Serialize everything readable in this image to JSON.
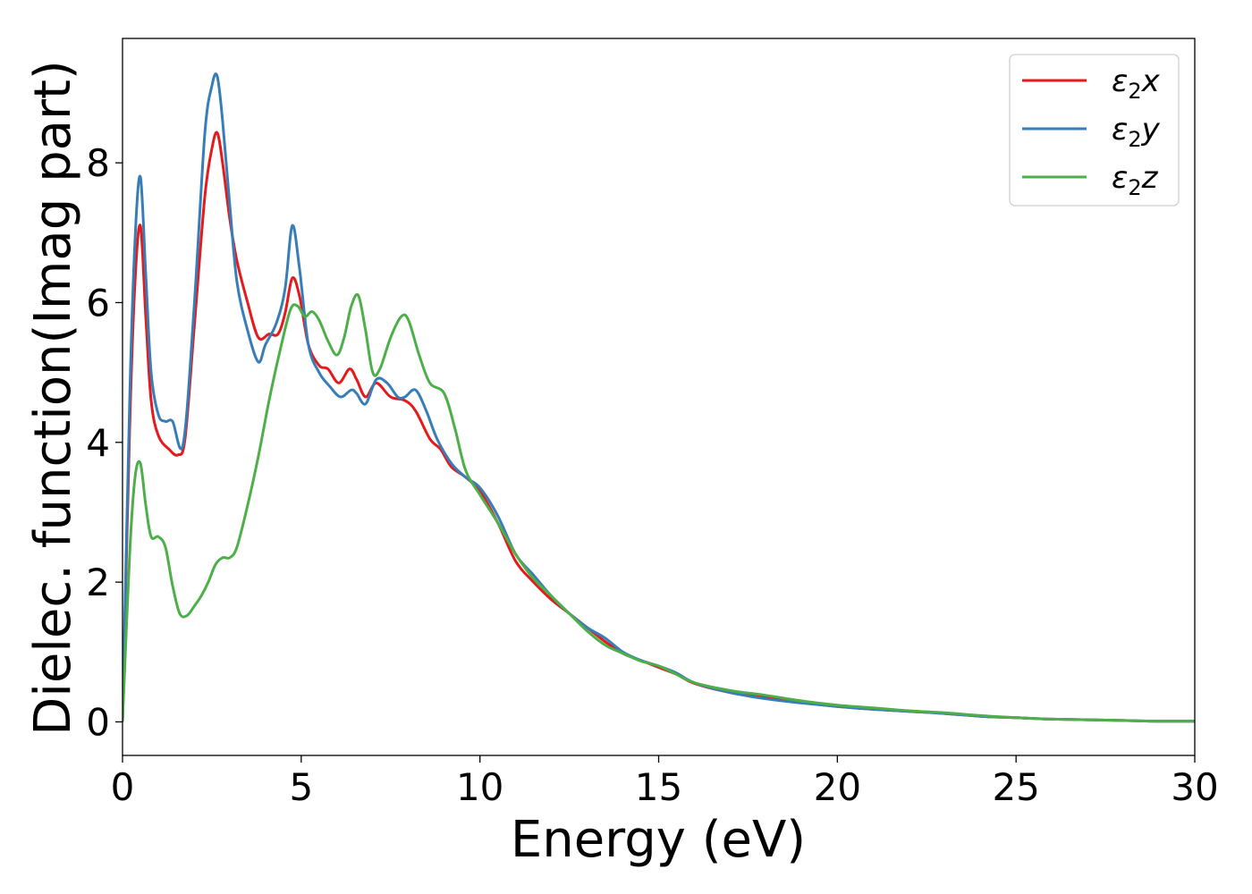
{
  "chart_data": {
    "type": "line",
    "xlabel": "Energy (eV)",
    "ylabel": "Dielec. function(Imag part)",
    "xlim": [
      0,
      30
    ],
    "ylim": [
      -0.48,
      9.78
    ],
    "xticks": [
      0,
      5,
      10,
      15,
      20,
      25,
      30
    ],
    "yticks": [
      0,
      2,
      4,
      6,
      8
    ],
    "grid": false,
    "legend_position": "top-right",
    "series": [
      {
        "name": "ε₂x",
        "legend_base": "ε",
        "legend_sub": "2",
        "legend_suffix": "x",
        "color": "#e41a1c",
        "x": [
          0,
          0.2,
          0.35,
          0.5,
          0.65,
          0.8,
          1.0,
          1.3,
          1.55,
          1.75,
          2.0,
          2.3,
          2.5,
          2.65,
          2.8,
          3.0,
          3.2,
          3.5,
          3.8,
          4.1,
          4.35,
          4.55,
          4.75,
          4.95,
          5.2,
          5.5,
          5.75,
          6.05,
          6.35,
          6.55,
          6.8,
          7.1,
          7.5,
          7.9,
          8.2,
          8.6,
          8.9,
          9.2,
          9.6,
          10.0,
          10.5,
          11.0,
          11.5,
          12.0,
          12.5,
          13.0,
          13.5,
          14.0,
          14.5,
          15.0,
          15.5,
          16.0,
          17.0,
          18.0,
          19.0,
          20.0,
          21.0,
          22.0,
          23.0,
          24.0,
          25.0,
          26.0,
          27.0,
          28.0,
          29.0,
          30.0
        ],
        "y": [
          0,
          4.2,
          6.3,
          7.1,
          5.8,
          4.6,
          4.1,
          3.9,
          3.82,
          4.05,
          5.6,
          7.5,
          8.2,
          8.43,
          8.0,
          7.2,
          6.6,
          6.0,
          5.5,
          5.55,
          5.55,
          5.85,
          6.35,
          6.1,
          5.4,
          5.1,
          5.05,
          4.85,
          5.05,
          4.9,
          4.65,
          4.85,
          4.65,
          4.6,
          4.45,
          4.05,
          3.9,
          3.65,
          3.5,
          3.3,
          2.85,
          2.3,
          2.0,
          1.75,
          1.55,
          1.35,
          1.15,
          0.98,
          0.88,
          0.78,
          0.68,
          0.55,
          0.42,
          0.35,
          0.28,
          0.22,
          0.18,
          0.15,
          0.12,
          0.08,
          0.06,
          0.04,
          0.03,
          0.02,
          0.01,
          0.01
        ]
      },
      {
        "name": "ε₂y",
        "legend_base": "ε",
        "legend_sub": "2",
        "legend_suffix": "y",
        "color": "#377eb8",
        "x": [
          0,
          0.2,
          0.35,
          0.5,
          0.65,
          0.8,
          1.0,
          1.2,
          1.4,
          1.7,
          2.0,
          2.3,
          2.5,
          2.65,
          2.8,
          3.0,
          3.2,
          3.5,
          3.8,
          4.0,
          4.3,
          4.55,
          4.75,
          4.95,
          5.2,
          5.5,
          5.8,
          6.1,
          6.4,
          6.55,
          6.8,
          7.1,
          7.4,
          7.7,
          7.9,
          8.2,
          8.5,
          8.8,
          9.2,
          9.6,
          10.0,
          10.5,
          11.0,
          11.5,
          12.0,
          12.5,
          13.0,
          13.5,
          14.0,
          14.5,
          15.0,
          15.5,
          16.0,
          17.0,
          18.0,
          19.0,
          20.0,
          21.0,
          22.0,
          23.0,
          24.0,
          25.0,
          26.0,
          27.0,
          28.0,
          29.0,
          30.0
        ],
        "y": [
          0,
          4.6,
          6.9,
          7.8,
          6.4,
          5.0,
          4.4,
          4.3,
          4.3,
          3.98,
          5.9,
          8.4,
          9.1,
          9.24,
          8.6,
          7.4,
          6.3,
          5.6,
          5.15,
          5.4,
          5.7,
          6.2,
          7.1,
          6.5,
          5.4,
          5.0,
          4.8,
          4.65,
          4.75,
          4.7,
          4.55,
          4.9,
          4.85,
          4.65,
          4.65,
          4.75,
          4.45,
          4.05,
          3.7,
          3.5,
          3.35,
          2.95,
          2.4,
          2.1,
          1.8,
          1.55,
          1.35,
          1.2,
          1.0,
          0.88,
          0.8,
          0.7,
          0.56,
          0.42,
          0.33,
          0.27,
          0.22,
          0.18,
          0.15,
          0.12,
          0.08,
          0.06,
          0.04,
          0.03,
          0.02,
          0.01,
          0.01
        ]
      },
      {
        "name": "ε₂z",
        "legend_base": "ε",
        "legend_sub": "2",
        "legend_suffix": "z",
        "color": "#4daf4a",
        "x": [
          0,
          0.2,
          0.35,
          0.5,
          0.65,
          0.8,
          1.0,
          1.2,
          1.4,
          1.6,
          1.8,
          2.0,
          2.2,
          2.4,
          2.6,
          2.8,
          3.0,
          3.2,
          3.5,
          3.8,
          4.1,
          4.4,
          4.7,
          4.9,
          5.1,
          5.3,
          5.5,
          5.75,
          6.0,
          6.2,
          6.4,
          6.6,
          6.8,
          7.0,
          7.2,
          7.5,
          7.8,
          8.0,
          8.3,
          8.6,
          9.0,
          9.3,
          9.6,
          10.0,
          10.5,
          11.0,
          11.5,
          12.0,
          12.5,
          13.0,
          13.5,
          14.0,
          14.5,
          15.0,
          15.5,
          16.0,
          17.0,
          18.0,
          19.0,
          20.0,
          21.0,
          22.0,
          23.0,
          24.0,
          25.0,
          26.0,
          27.0,
          28.0,
          29.0,
          30.0
        ],
        "y": [
          0,
          2.4,
          3.5,
          3.7,
          3.1,
          2.65,
          2.65,
          2.5,
          1.95,
          1.55,
          1.52,
          1.65,
          1.8,
          2.0,
          2.25,
          2.35,
          2.35,
          2.5,
          3.1,
          3.8,
          4.6,
          5.3,
          5.9,
          5.95,
          5.8,
          5.87,
          5.75,
          5.45,
          5.25,
          5.5,
          5.95,
          6.1,
          5.6,
          5.0,
          5.05,
          5.5,
          5.8,
          5.75,
          5.25,
          4.85,
          4.7,
          4.2,
          3.6,
          3.25,
          2.85,
          2.4,
          2.05,
          1.8,
          1.55,
          1.3,
          1.1,
          0.98,
          0.87,
          0.8,
          0.68,
          0.56,
          0.45,
          0.38,
          0.3,
          0.24,
          0.2,
          0.16,
          0.13,
          0.09,
          0.06,
          0.04,
          0.03,
          0.02,
          0.01,
          0.01
        ]
      }
    ]
  }
}
